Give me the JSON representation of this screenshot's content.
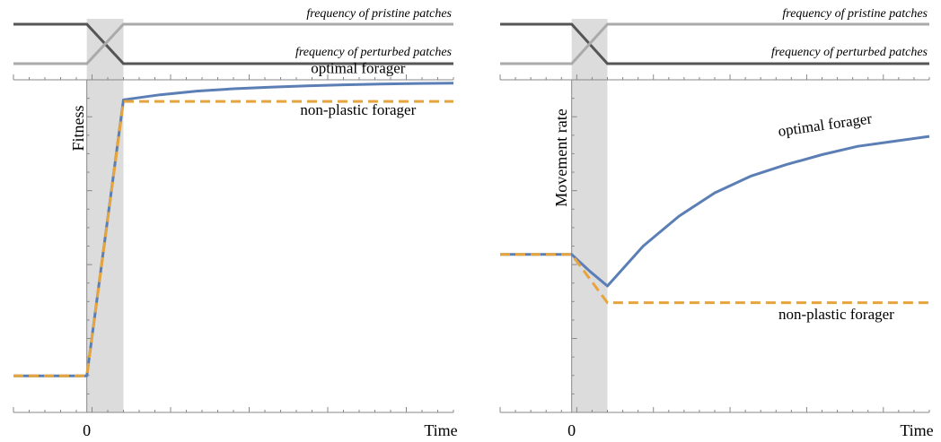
{
  "chart_data": [
    {
      "type": "line",
      "top_strip": {
        "labels": [
          "frequency of pristine patches",
          "frequency of perturbed patches"
        ],
        "series": [
          {
            "name": "frequency of pristine patches",
            "color": "#555555",
            "points": [
              [
                -2,
                1
              ],
              [
                0,
                1
              ],
              [
                1,
                0
              ],
              [
                10,
                0
              ]
            ]
          },
          {
            "name": "frequency of perturbed patches",
            "color": "#aaaaaa",
            "points": [
              [
                -2,
                0
              ],
              [
                0,
                0
              ],
              [
                1,
                1
              ],
              [
                10,
                1
              ]
            ]
          }
        ]
      },
      "xlabel": "Time",
      "ylabel": "Fitness",
      "x_tick_labels": [
        {
          "x": 0,
          "label": "0"
        }
      ],
      "xlim": [
        -2,
        10
      ],
      "ylim": [
        0,
        1
      ],
      "shaded_interval": [
        0,
        1
      ],
      "series": [
        {
          "name": "optimal forager",
          "color": "#5b7fb5",
          "style": "solid",
          "points": [
            [
              -2,
              0.11
            ],
            [
              0,
              0.11
            ],
            [
              1,
              0.94
            ],
            [
              2,
              0.955
            ],
            [
              3,
              0.966
            ],
            [
              4,
              0.973
            ],
            [
              5,
              0.978
            ],
            [
              6,
              0.982
            ],
            [
              7,
              0.985
            ],
            [
              8,
              0.987
            ],
            [
              9,
              0.989
            ],
            [
              10,
              0.99
            ]
          ]
        },
        {
          "name": "non-plastic forager",
          "color": "#e6a43c",
          "style": "dashed",
          "points": [
            [
              -2,
              0.11
            ],
            [
              0,
              0.11
            ],
            [
              1,
              0.935
            ],
            [
              10,
              0.935
            ]
          ]
        }
      ],
      "annotations": [
        {
          "text": "optimal forager",
          "x": 7.4,
          "y": 1.02
        },
        {
          "text": "non-plastic forager",
          "x": 7.4,
          "y": 0.895
        }
      ]
    },
    {
      "type": "line",
      "top_strip": {
        "labels": [
          "frequency of pristine patches",
          "frequency of perturbed patches"
        ],
        "series": [
          {
            "name": "frequency of pristine patches",
            "color": "#555555",
            "points": [
              [
                -2,
                1
              ],
              [
                0,
                1
              ],
              [
                1,
                0
              ],
              [
                10,
                0
              ]
            ]
          },
          {
            "name": "frequency of perturbed patches",
            "color": "#aaaaaa",
            "points": [
              [
                -2,
                0
              ],
              [
                0,
                0
              ],
              [
                1,
                1
              ],
              [
                10,
                1
              ]
            ]
          }
        ]
      },
      "xlabel": "Time",
      "ylabel": "Movement rate",
      "x_tick_labels": [
        {
          "x": 0,
          "label": "0"
        }
      ],
      "xlim": [
        -2,
        10
      ],
      "ylim": [
        0,
        1
      ],
      "shaded_interval": [
        0,
        1
      ],
      "series": [
        {
          "name": "optimal forager",
          "color": "#5b7fb5",
          "style": "solid",
          "points": [
            [
              -2,
              0.475
            ],
            [
              0,
              0.475
            ],
            [
              0.5,
              0.425
            ],
            [
              1,
              0.38
            ],
            [
              2,
              0.5
            ],
            [
              3,
              0.59
            ],
            [
              4,
              0.66
            ],
            [
              5,
              0.71
            ],
            [
              6,
              0.745
            ],
            [
              7,
              0.775
            ],
            [
              8,
              0.8
            ],
            [
              9,
              0.815
            ],
            [
              10,
              0.83
            ]
          ]
        },
        {
          "name": "non-plastic forager",
          "color": "#e6a43c",
          "style": "dashed",
          "points": [
            [
              -2,
              0.475
            ],
            [
              0,
              0.475
            ],
            [
              1,
              0.33
            ],
            [
              10,
              0.33
            ]
          ]
        }
      ],
      "annotations": [
        {
          "text": "optimal forager",
          "x": 7.1,
          "y": 0.85
        },
        {
          "text": "non-plastic forager",
          "x": 7.4,
          "y": 0.28
        }
      ]
    }
  ]
}
